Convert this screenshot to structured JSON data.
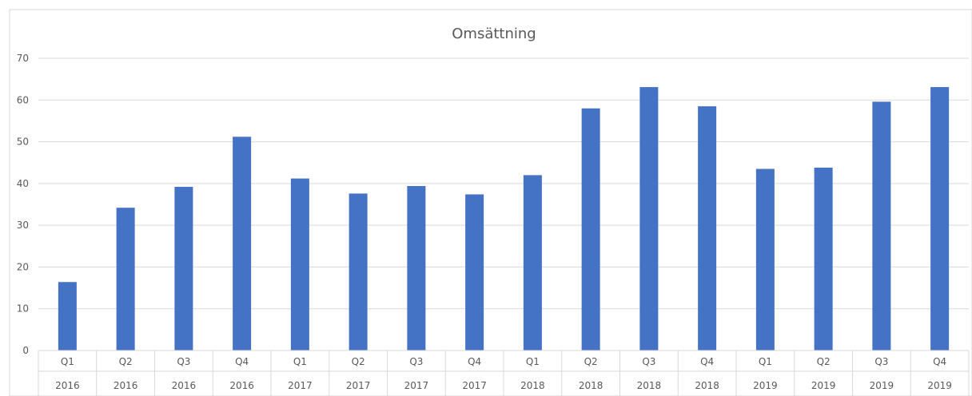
{
  "chart_data": {
    "type": "bar",
    "title": "Omsättning",
    "xlabel": "",
    "ylabel": "",
    "ylim": [
      0,
      70
    ],
    "yticks": [
      0,
      10,
      20,
      30,
      40,
      50,
      60,
      70
    ],
    "grid": true,
    "legend": "none",
    "bar_color": "#4472C4",
    "gridline_color": "#D9D9D9",
    "categories": [
      {
        "quarter": "Q1",
        "year": "2016"
      },
      {
        "quarter": "Q2",
        "year": "2016"
      },
      {
        "quarter": "Q3",
        "year": "2016"
      },
      {
        "quarter": "Q4",
        "year": "2016"
      },
      {
        "quarter": "Q1",
        "year": "2017"
      },
      {
        "quarter": "Q2",
        "year": "2017"
      },
      {
        "quarter": "Q3",
        "year": "2017"
      },
      {
        "quarter": "Q4",
        "year": "2017"
      },
      {
        "quarter": "Q1",
        "year": "2018"
      },
      {
        "quarter": "Q2",
        "year": "2018"
      },
      {
        "quarter": "Q3",
        "year": "2018"
      },
      {
        "quarter": "Q4",
        "year": "2018"
      },
      {
        "quarter": "Q1",
        "year": "2019"
      },
      {
        "quarter": "Q2",
        "year": "2019"
      },
      {
        "quarter": "Q3",
        "year": "2019"
      },
      {
        "quarter": "Q4",
        "year": "2019"
      }
    ],
    "values": [
      16.4,
      34.2,
      39.2,
      51.2,
      41.2,
      37.6,
      39.4,
      37.4,
      42.0,
      58.0,
      63.1,
      58.5,
      43.5,
      43.8,
      59.6,
      63.1
    ]
  }
}
